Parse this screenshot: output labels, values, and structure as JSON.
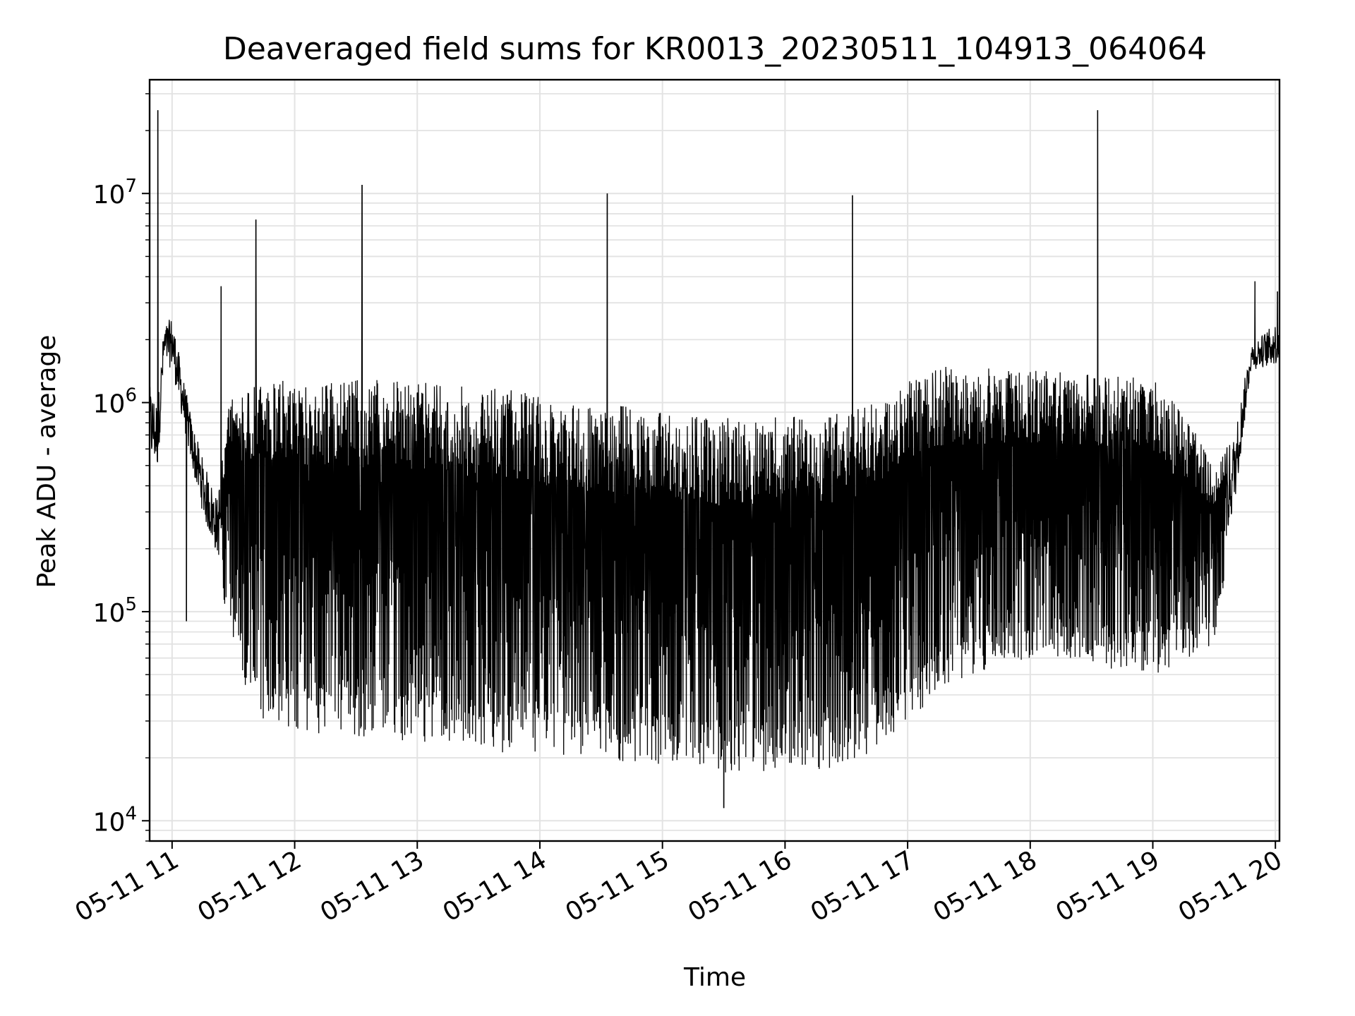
{
  "chart_data": {
    "type": "line",
    "title": "Deaveraged field sums for KR0013_20230511_104913_064064",
    "xlabel": "Time",
    "ylabel": "Peak ADU - average",
    "yscale": "log",
    "ylim": [
      8000,
      35000000
    ],
    "xlim": [
      "2023-05-11 10:49",
      "2023-05-11 20:02"
    ],
    "grid": true,
    "line_color": "#000000",
    "x_ticks": [
      {
        "label": "05-11 11",
        "t": "2023-05-11 11:00"
      },
      {
        "label": "05-11 12",
        "t": "2023-05-11 12:00"
      },
      {
        "label": "05-11 13",
        "t": "2023-05-11 13:00"
      },
      {
        "label": "05-11 14",
        "t": "2023-05-11 14:00"
      },
      {
        "label": "05-11 15",
        "t": "2023-05-11 15:00"
      },
      {
        "label": "05-11 16",
        "t": "2023-05-11 16:00"
      },
      {
        "label": "05-11 17",
        "t": "2023-05-11 17:00"
      },
      {
        "label": "05-11 18",
        "t": "2023-05-11 18:00"
      },
      {
        "label": "05-11 19",
        "t": "2023-05-11 19:00"
      },
      {
        "label": "05-11 20",
        "t": "2023-05-11 20:00"
      }
    ],
    "y_ticks": [
      {
        "value": 10000,
        "base": "10",
        "exp": "4"
      },
      {
        "value": 100000,
        "base": "10",
        "exp": "5"
      },
      {
        "value": 1000000,
        "base": "10",
        "exp": "6"
      },
      {
        "value": 10000000,
        "base": "10",
        "exp": "7"
      }
    ],
    "series": [
      {
        "envelope": [
          {
            "t": "2023-05-11 10:49",
            "low": 400000,
            "high": 1200000
          },
          {
            "t": "2023-05-11 10:53",
            "low": 380000,
            "high": 1000000
          },
          {
            "t": "2023-05-11 10:56",
            "low": 1300000,
            "high": 2300000
          },
          {
            "t": "2023-05-11 11:00",
            "low": 1200000,
            "high": 2600000
          },
          {
            "t": "2023-05-11 11:05",
            "low": 700000,
            "high": 1400000
          },
          {
            "t": "2023-05-11 11:10",
            "low": 400000,
            "high": 800000
          },
          {
            "t": "2023-05-11 11:16",
            "low": 220000,
            "high": 500000
          },
          {
            "t": "2023-05-11 11:22",
            "low": 150000,
            "high": 350000
          },
          {
            "t": "2023-05-11 11:28",
            "low": 90000,
            "high": 1000000
          },
          {
            "t": "2023-05-11 11:34",
            "low": 45000,
            "high": 1200000
          },
          {
            "t": "2023-05-11 11:45",
            "low": 30000,
            "high": 1300000
          },
          {
            "t": "2023-05-11 12:00",
            "low": 27000,
            "high": 1300000
          },
          {
            "t": "2023-05-11 12:30",
            "low": 25000,
            "high": 1300000
          },
          {
            "t": "2023-05-11 13:00",
            "low": 24000,
            "high": 1250000
          },
          {
            "t": "2023-05-11 13:30",
            "low": 22000,
            "high": 1200000
          },
          {
            "t": "2023-05-11 14:00",
            "low": 20000,
            "high": 1100000
          },
          {
            "t": "2023-05-11 14:30",
            "low": 19000,
            "high": 1000000
          },
          {
            "t": "2023-05-11 15:00",
            "low": 18000,
            "high": 900000
          },
          {
            "t": "2023-05-11 15:30",
            "low": 17000,
            "high": 850000
          },
          {
            "t": "2023-05-11 16:00",
            "low": 16500,
            "high": 850000
          },
          {
            "t": "2023-05-11 16:30",
            "low": 18000,
            "high": 900000
          },
          {
            "t": "2023-05-11 16:45",
            "low": 22000,
            "high": 1000000
          },
          {
            "t": "2023-05-11 17:00",
            "low": 30000,
            "high": 1300000
          },
          {
            "t": "2023-05-11 17:20",
            "low": 45000,
            "high": 1500000
          },
          {
            "t": "2023-05-11 17:45",
            "low": 55000,
            "high": 1450000
          },
          {
            "t": "2023-05-11 18:15",
            "low": 60000,
            "high": 1400000
          },
          {
            "t": "2023-05-11 18:45",
            "low": 52000,
            "high": 1350000
          },
          {
            "t": "2023-05-11 19:00",
            "low": 50000,
            "high": 1300000
          },
          {
            "t": "2023-05-11 19:15",
            "low": 55000,
            "high": 900000
          },
          {
            "t": "2023-05-11 19:30",
            "low": 70000,
            "high": 500000
          },
          {
            "t": "2023-05-11 19:40",
            "low": 250000,
            "high": 700000
          },
          {
            "t": "2023-05-11 19:48",
            "low": 1300000,
            "high": 1900000
          },
          {
            "t": "2023-05-11 20:02",
            "low": 1300000,
            "high": 2500000
          }
        ],
        "spikes": [
          {
            "t": "2023-05-11 10:53",
            "value": 25000000
          },
          {
            "t": "2023-05-11 11:07",
            "value": 90000
          },
          {
            "t": "2023-05-11 11:24",
            "value": 3600000
          },
          {
            "t": "2023-05-11 11:41",
            "value": 7500000
          },
          {
            "t": "2023-05-11 12:33",
            "value": 11000000
          },
          {
            "t": "2023-05-11 14:33",
            "value": 10000000
          },
          {
            "t": "2023-05-11 15:30",
            "value": 11500
          },
          {
            "t": "2023-05-11 16:33",
            "value": 9800000
          },
          {
            "t": "2023-05-11 18:33",
            "value": 25000000
          },
          {
            "t": "2023-05-11 19:50",
            "value": 3800000
          },
          {
            "t": "2023-05-11 20:01",
            "value": 3400000
          }
        ]
      }
    ]
  }
}
